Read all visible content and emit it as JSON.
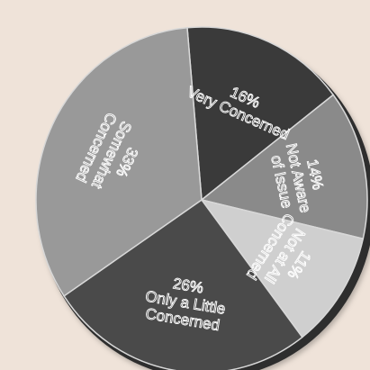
{
  "chart_data": {
    "type": "pie",
    "title": "",
    "legend": "none",
    "slices": [
      {
        "label": "16% Very Concerned",
        "value": 16,
        "lines": [
          "16%",
          "Very Concerned"
        ],
        "color": "#3a3a3a"
      },
      {
        "label": "14% Not Aware of Issue",
        "value": 14,
        "lines": [
          "14%",
          "Not Aware",
          "of Issue"
        ],
        "color": "#8a8a8a"
      },
      {
        "label": "11% Not at All Concerned",
        "value": 11,
        "lines": [
          "11%",
          "Not at All",
          "Concerned"
        ],
        "color": "#cfcfcf"
      },
      {
        "label": "26% Only a Little Concerned",
        "value": 26,
        "lines": [
          "26%",
          "Only a Little",
          "Concerned"
        ],
        "color": "#4a4a4a"
      },
      {
        "label": "33% Somewhat Concerned",
        "value": 33,
        "lines": [
          "33%",
          "Somewhat",
          "Concerned"
        ],
        "color": "#999999"
      }
    ],
    "colors": {
      "background": "#efe3d9",
      "separator": "#d8d8d8",
      "text": "#ffffff"
    }
  }
}
